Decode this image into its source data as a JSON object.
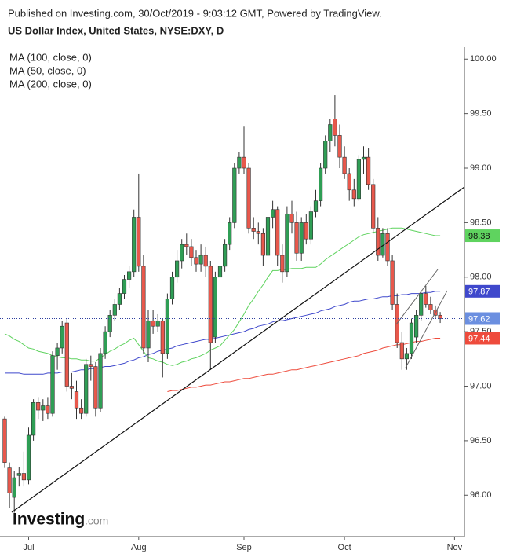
{
  "chart_data": {
    "type": "candlestick",
    "header": "Published on Investing.com, 30/Oct/2019 - 9:03:12 GMT, Powered by TradingView.",
    "title": "US Dollar Index, United States, NYSE:DXY, D",
    "logo": {
      "name": "Investing",
      "suffix": ".com"
    },
    "categories": [
      null,
      null,
      null,
      null,
      null,
      "Jul",
      null,
      null,
      null,
      null,
      null,
      null,
      null,
      null,
      null,
      null,
      null,
      null,
      null,
      null,
      null,
      null,
      null,
      null,
      null,
      null,
      null,
      null,
      "Aug",
      null,
      null,
      null,
      null,
      null,
      null,
      null,
      null,
      null,
      null,
      null,
      null,
      null,
      null,
      null,
      null,
      null,
      null,
      null,
      null,
      null,
      "Sep",
      null,
      null,
      null,
      null,
      null,
      null,
      null,
      null,
      null,
      null,
      null,
      null,
      null,
      null,
      null,
      null,
      null,
      null,
      null,
      null,
      "Oct",
      null,
      null,
      null,
      null,
      null,
      null,
      null,
      null,
      null,
      null,
      null,
      null,
      null,
      null,
      null,
      null,
      null,
      null,
      null,
      null,
      null,
      null,
      "Nov"
    ],
    "open": [
      96.7,
      96.25,
      95.98,
      96.18,
      96.2,
      96.14,
      96.55,
      96.85,
      96.78,
      96.82,
      96.75,
      97.28,
      97.35,
      97.58,
      97.0,
      96.95,
      96.8,
      96.75,
      97.2,
      97.18,
      96.8,
      97.3,
      97.5,
      97.65,
      97.75,
      97.85,
      97.98,
      98.05,
      98.55,
      98.1,
      97.35,
      97.6,
      97.55,
      97.6,
      97.3,
      97.8,
      98.0,
      98.15,
      98.3,
      98.28,
      98.18,
      98.12,
      98.2,
      98.1,
      97.45,
      98.0,
      98.1,
      98.3,
      98.5,
      99.0,
      99.1,
      99.0,
      98.45,
      98.42,
      98.4,
      98.2,
      98.55,
      98.62,
      98.2,
      98.05,
      98.58,
      98.5,
      98.22,
      98.5,
      98.35,
      98.6,
      98.7,
      99.0,
      99.25,
      99.45,
      99.3,
      99.1,
      98.95,
      98.8,
      98.72,
      99.08,
      99.1,
      98.85,
      98.45,
      98.2,
      98.4,
      98.15,
      97.75,
      97.4,
      97.25,
      97.3,
      97.45,
      97.65,
      97.85,
      97.75,
      97.7,
      97.65,
      null,
      null,
      null
    ],
    "high": [
      96.72,
      96.3,
      96.22,
      96.26,
      96.4,
      96.62,
      96.88,
      96.9,
      96.88,
      96.9,
      97.32,
      97.4,
      97.6,
      97.62,
      97.12,
      97.05,
      96.88,
      97.25,
      97.28,
      97.22,
      97.35,
      97.55,
      97.7,
      97.8,
      97.9,
      98.02,
      98.1,
      98.62,
      98.95,
      98.2,
      97.7,
      97.7,
      97.66,
      97.62,
      97.85,
      98.05,
      98.25,
      98.35,
      98.4,
      98.35,
      98.25,
      98.3,
      98.28,
      98.15,
      98.05,
      98.15,
      98.35,
      98.55,
      99.05,
      99.15,
      99.38,
      99.05,
      98.55,
      98.5,
      98.45,
      98.62,
      98.7,
      98.65,
      98.3,
      98.65,
      98.7,
      98.6,
      98.55,
      98.58,
      98.65,
      98.8,
      99.05,
      99.3,
      99.45,
      99.67,
      99.4,
      99.2,
      99.0,
      98.9,
      99.12,
      99.2,
      99.18,
      98.9,
      98.55,
      98.45,
      98.45,
      98.2,
      97.85,
      97.5,
      97.35,
      97.62,
      97.7,
      97.88,
      97.92,
      97.82,
      97.74,
      97.68,
      null,
      null,
      null
    ],
    "low": [
      96.25,
      95.88,
      95.84,
      96.08,
      96.08,
      96.1,
      96.5,
      96.7,
      96.68,
      96.7,
      96.72,
      97.15,
      97.3,
      96.95,
      96.88,
      96.7,
      96.7,
      96.72,
      97.05,
      96.72,
      96.76,
      97.25,
      97.45,
      97.6,
      97.7,
      97.8,
      97.9,
      98.0,
      98.05,
      97.3,
      97.22,
      97.48,
      97.5,
      97.08,
      97.25,
      97.75,
      97.95,
      98.08,
      98.2,
      98.1,
      98.05,
      98.05,
      98.0,
      97.15,
      97.4,
      97.95,
      98.05,
      98.25,
      98.45,
      98.95,
      98.95,
      98.4,
      98.35,
      98.3,
      98.1,
      98.1,
      98.45,
      98.1,
      97.95,
      98.0,
      98.4,
      98.15,
      98.15,
      98.3,
      98.3,
      98.55,
      98.65,
      98.95,
      99.15,
      99.2,
      99.0,
      98.9,
      98.7,
      98.65,
      98.7,
      98.95,
      98.8,
      98.4,
      98.15,
      98.18,
      98.1,
      97.7,
      97.35,
      97.15,
      97.15,
      97.25,
      97.4,
      97.6,
      97.72,
      97.66,
      97.62,
      97.58,
      null,
      null,
      null
    ],
    "close": [
      96.3,
      96.02,
      96.16,
      96.2,
      96.14,
      96.55,
      96.85,
      96.78,
      96.82,
      96.75,
      97.28,
      97.35,
      97.55,
      97.0,
      96.98,
      96.8,
      96.75,
      97.2,
      97.18,
      96.8,
      97.3,
      97.5,
      97.65,
      97.75,
      97.85,
      97.98,
      98.05,
      98.55,
      98.1,
      97.35,
      97.6,
      97.55,
      97.6,
      97.3,
      97.8,
      98.0,
      98.15,
      98.3,
      98.28,
      98.18,
      98.12,
      98.2,
      98.1,
      97.4,
      98.0,
      98.1,
      98.3,
      98.5,
      99.0,
      99.1,
      99.0,
      98.45,
      98.42,
      98.4,
      98.2,
      98.55,
      98.62,
      98.2,
      98.05,
      98.58,
      98.5,
      98.22,
      98.5,
      98.35,
      98.6,
      98.7,
      99.0,
      99.25,
      99.4,
      99.3,
      99.1,
      98.95,
      98.8,
      98.72,
      99.08,
      99.1,
      98.85,
      98.45,
      98.2,
      98.4,
      98.15,
      97.75,
      97.4,
      97.25,
      97.3,
      97.58,
      97.65,
      97.85,
      97.75,
      97.7,
      97.65,
      97.62,
      null,
      null,
      null
    ],
    "up_color": "#2f9e55",
    "down_color": "#e8584c",
    "last_price_color": "#6b8fe0",
    "ylim": [
      95.62,
      100.11
    ],
    "yticks": [
      {
        "value": 96,
        "label": "96.00"
      },
      {
        "value": 96.5,
        "label": "96.50"
      },
      {
        "value": 97,
        "label": "97.00"
      },
      {
        "value": 97.5,
        "label": "97.50"
      },
      {
        "value": 98,
        "label": "98.00"
      },
      {
        "value": 98.5,
        "label": "98.50"
      },
      {
        "value": 99,
        "label": "99.00"
      },
      {
        "value": 99.5,
        "label": "99.50"
      },
      {
        "value": 100,
        "label": "100.00"
      }
    ],
    "moving_averages": [
      {
        "name": "MA (100, close, 0)",
        "color": "#3f48cc",
        "values": [
          97.12,
          97.12,
          97.12,
          97.12,
          97.11,
          97.11,
          97.11,
          97.11,
          97.11,
          97.12,
          97.12,
          97.12,
          97.13,
          97.13,
          97.13,
          97.14,
          97.15,
          97.15,
          97.16,
          97.16,
          97.17,
          97.18,
          97.18,
          97.19,
          97.2,
          97.21,
          97.23,
          97.24,
          97.26,
          97.27,
          97.29,
          97.3,
          97.32,
          97.33,
          97.34,
          97.35,
          97.37,
          97.38,
          97.39,
          97.4,
          97.41,
          97.42,
          97.43,
          97.43,
          97.44,
          97.45,
          97.46,
          97.47,
          97.48,
          97.49,
          97.5,
          97.52,
          97.53,
          97.55,
          97.56,
          97.57,
          97.59,
          97.6,
          97.6,
          97.61,
          97.62,
          97.63,
          97.64,
          97.65,
          97.66,
          97.67,
          97.69,
          97.7,
          97.71,
          97.73,
          97.74,
          97.75,
          97.77,
          97.78,
          97.78,
          97.79,
          97.8,
          97.8,
          97.81,
          97.82,
          97.82,
          97.83,
          97.83,
          97.84,
          97.84,
          97.85,
          97.85,
          97.85,
          97.86,
          97.86,
          97.87,
          97.87,
          null,
          null,
          null
        ]
      },
      {
        "name": "MA (50, close, 0)",
        "color": "#5fd35f",
        "values": [
          97.48,
          97.46,
          97.43,
          97.41,
          97.38,
          97.35,
          97.34,
          97.32,
          97.31,
          97.3,
          97.28,
          97.27,
          97.26,
          97.26,
          97.25,
          97.25,
          97.24,
          97.24,
          97.23,
          97.23,
          97.26,
          97.29,
          97.32,
          97.34,
          97.37,
          97.39,
          97.42,
          97.44,
          97.38,
          97.32,
          97.26,
          97.25,
          97.23,
          97.22,
          97.2,
          97.19,
          97.2,
          97.22,
          97.23,
          97.25,
          97.26,
          97.28,
          97.3,
          97.33,
          97.35,
          97.37,
          97.42,
          97.47,
          97.52,
          97.59,
          97.66,
          97.74,
          97.8,
          97.87,
          97.93,
          98.0,
          98.06,
          98.06,
          98.07,
          98.07,
          98.08,
          98.08,
          98.08,
          98.09,
          98.09,
          98.09,
          98.12,
          98.16,
          98.19,
          98.22,
          98.25,
          98.28,
          98.31,
          98.34,
          98.37,
          98.39,
          98.4,
          98.41,
          98.42,
          98.43,
          98.44,
          98.45,
          98.45,
          98.45,
          98.44,
          98.43,
          98.42,
          98.41,
          98.4,
          98.39,
          98.38,
          98.38,
          null,
          null,
          null
        ]
      },
      {
        "name": "MA (200, close, 0)",
        "color": "#ee4b3c",
        "values": [
          null,
          null,
          null,
          null,
          null,
          null,
          null,
          null,
          null,
          null,
          null,
          null,
          null,
          null,
          null,
          null,
          null,
          null,
          null,
          null,
          null,
          null,
          null,
          null,
          null,
          null,
          null,
          null,
          null,
          null,
          null,
          null,
          null,
          null,
          96.95,
          96.96,
          96.96,
          96.97,
          96.98,
          96.99,
          96.99,
          97.0,
          97.01,
          97.01,
          97.02,
          97.03,
          97.04,
          97.04,
          97.05,
          97.06,
          97.07,
          97.07,
          97.08,
          97.09,
          97.1,
          97.11,
          97.11,
          97.12,
          97.13,
          97.14,
          97.15,
          97.15,
          97.16,
          97.17,
          97.18,
          97.19,
          97.2,
          97.21,
          97.22,
          97.23,
          97.24,
          97.25,
          97.26,
          97.27,
          97.28,
          97.3,
          97.31,
          97.32,
          97.33,
          97.35,
          97.36,
          97.37,
          97.38,
          97.38,
          97.39,
          97.4,
          97.41,
          97.41,
          97.42,
          97.43,
          97.44,
          97.44,
          null,
          null,
          null
        ]
      }
    ]
  }
}
